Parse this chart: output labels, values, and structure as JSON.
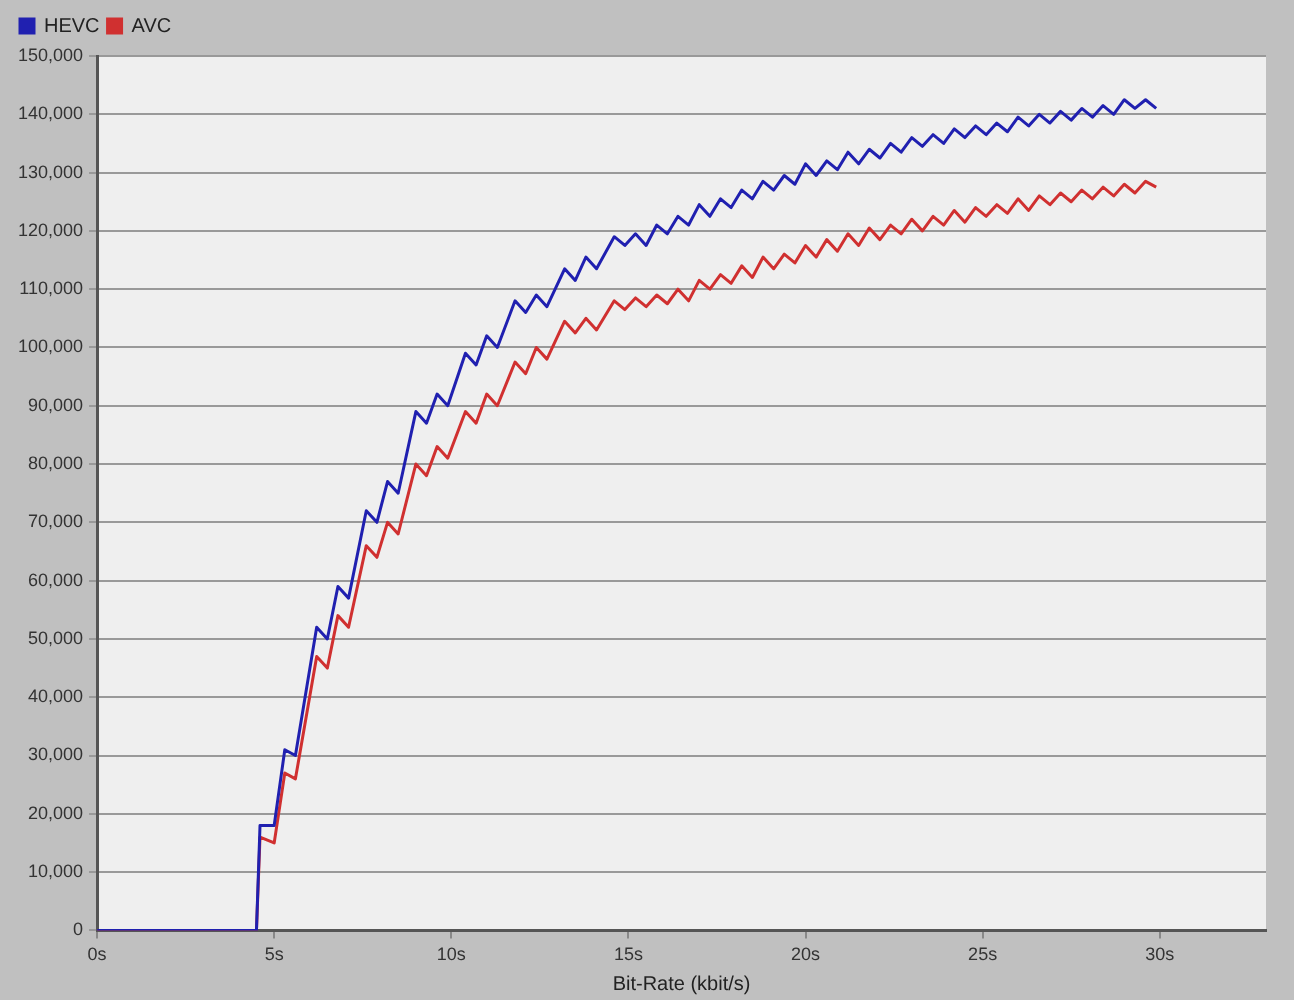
{
  "chart_data": {
    "type": "line",
    "xlabel": "Bit-Rate (kbit/s)",
    "x": [
      0,
      4.5,
      4.6,
      5.0,
      5.3,
      5.6,
      6.2,
      6.5,
      6.8,
      7.1,
      7.6,
      7.9,
      8.2,
      8.5,
      9.0,
      9.3,
      9.6,
      9.9,
      10.4,
      10.7,
      11.0,
      11.3,
      11.8,
      12.1,
      12.4,
      12.7,
      13.2,
      13.5,
      13.8,
      14.1,
      14.6,
      14.9,
      15.2,
      15.5,
      15.8,
      16.1,
      16.4,
      16.7,
      17.0,
      17.3,
      17.6,
      17.9,
      18.2,
      18.5,
      18.8,
      19.1,
      19.4,
      19.7,
      20.0,
      20.3,
      20.6,
      20.9,
      21.2,
      21.5,
      21.8,
      22.1,
      22.4,
      22.7,
      23.0,
      23.3,
      23.6,
      23.9,
      24.2,
      24.5,
      24.8,
      25.1,
      25.4,
      25.7,
      26.0,
      26.3,
      26.6,
      26.9,
      27.2,
      27.5,
      27.8,
      28.1,
      28.4,
      28.7,
      29.0,
      29.3,
      29.6,
      29.9
    ],
    "series": [
      {
        "name": "HEVC",
        "color": "#2020b0",
        "values": [
          0,
          0,
          18000,
          18000,
          31000,
          30000,
          52000,
          50000,
          59000,
          57000,
          72000,
          70000,
          77000,
          75000,
          89000,
          87000,
          92000,
          90000,
          99000,
          97000,
          102000,
          100000,
          108000,
          106000,
          109000,
          107000,
          113500,
          111500,
          115500,
          113500,
          119000,
          117500,
          119500,
          117500,
          121000,
          119500,
          122500,
          121000,
          124500,
          122500,
          125500,
          124000,
          127000,
          125500,
          128500,
          127000,
          129500,
          128000,
          131500,
          129500,
          132000,
          130500,
          133500,
          131500,
          134000,
          132500,
          135000,
          133500,
          136000,
          134500,
          136500,
          135000,
          137500,
          136000,
          138000,
          136500,
          138500,
          137000,
          139500,
          138000,
          140000,
          138500,
          140500,
          139000,
          141000,
          139500,
          141500,
          140000,
          142500,
          141000,
          142500,
          141000
        ]
      },
      {
        "name": "AVC",
        "color": "#d03030",
        "values": [
          0,
          0,
          16000,
          15000,
          27000,
          26000,
          47000,
          45000,
          54000,
          52000,
          66000,
          64000,
          70000,
          68000,
          80000,
          78000,
          83000,
          81000,
          89000,
          87000,
          92000,
          90000,
          97500,
          95500,
          100000,
          98000,
          104500,
          102500,
          105000,
          103000,
          108000,
          106500,
          108500,
          107000,
          109000,
          107500,
          110000,
          108000,
          111500,
          110000,
          112500,
          111000,
          114000,
          112000,
          115500,
          113500,
          116000,
          114500,
          117500,
          115500,
          118500,
          116500,
          119500,
          117500,
          120500,
          118500,
          121000,
          119500,
          122000,
          120000,
          122500,
          121000,
          123500,
          121500,
          124000,
          122500,
          124500,
          123000,
          125500,
          123500,
          126000,
          124500,
          126500,
          125000,
          127000,
          125500,
          127500,
          126000,
          128000,
          126500,
          128500,
          127500
        ]
      }
    ],
    "xlim": [
      0,
      33
    ],
    "xticks": [
      {
        "value": 0,
        "label": "0s"
      },
      {
        "value": 5,
        "label": "5s"
      },
      {
        "value": 10,
        "label": "10s"
      },
      {
        "value": 15,
        "label": "15s"
      },
      {
        "value": 20,
        "label": "20s"
      },
      {
        "value": 25,
        "label": "25s"
      },
      {
        "value": 30,
        "label": "30s"
      }
    ],
    "ylim": [
      0,
      150000
    ],
    "yticks": [
      {
        "value": 0,
        "label": "0"
      },
      {
        "value": 10000,
        "label": "10,000"
      },
      {
        "value": 20000,
        "label": "20,000"
      },
      {
        "value": 30000,
        "label": "30,000"
      },
      {
        "value": 40000,
        "label": "40,000"
      },
      {
        "value": 50000,
        "label": "50,000"
      },
      {
        "value": 60000,
        "label": "60,000"
      },
      {
        "value": 70000,
        "label": "70,000"
      },
      {
        "value": 80000,
        "label": "80,000"
      },
      {
        "value": 90000,
        "label": "90,000"
      },
      {
        "value": 100000,
        "label": "100,000"
      },
      {
        "value": 110000,
        "label": "110,000"
      },
      {
        "value": 120000,
        "label": "120,000"
      },
      {
        "value": 130000,
        "label": "130,000"
      },
      {
        "value": 140000,
        "label": "140,000"
      },
      {
        "value": 150000,
        "label": "150,000"
      }
    ],
    "grid": "y",
    "legend": "top left",
    "marker": "none",
    "line_style": "solid"
  }
}
